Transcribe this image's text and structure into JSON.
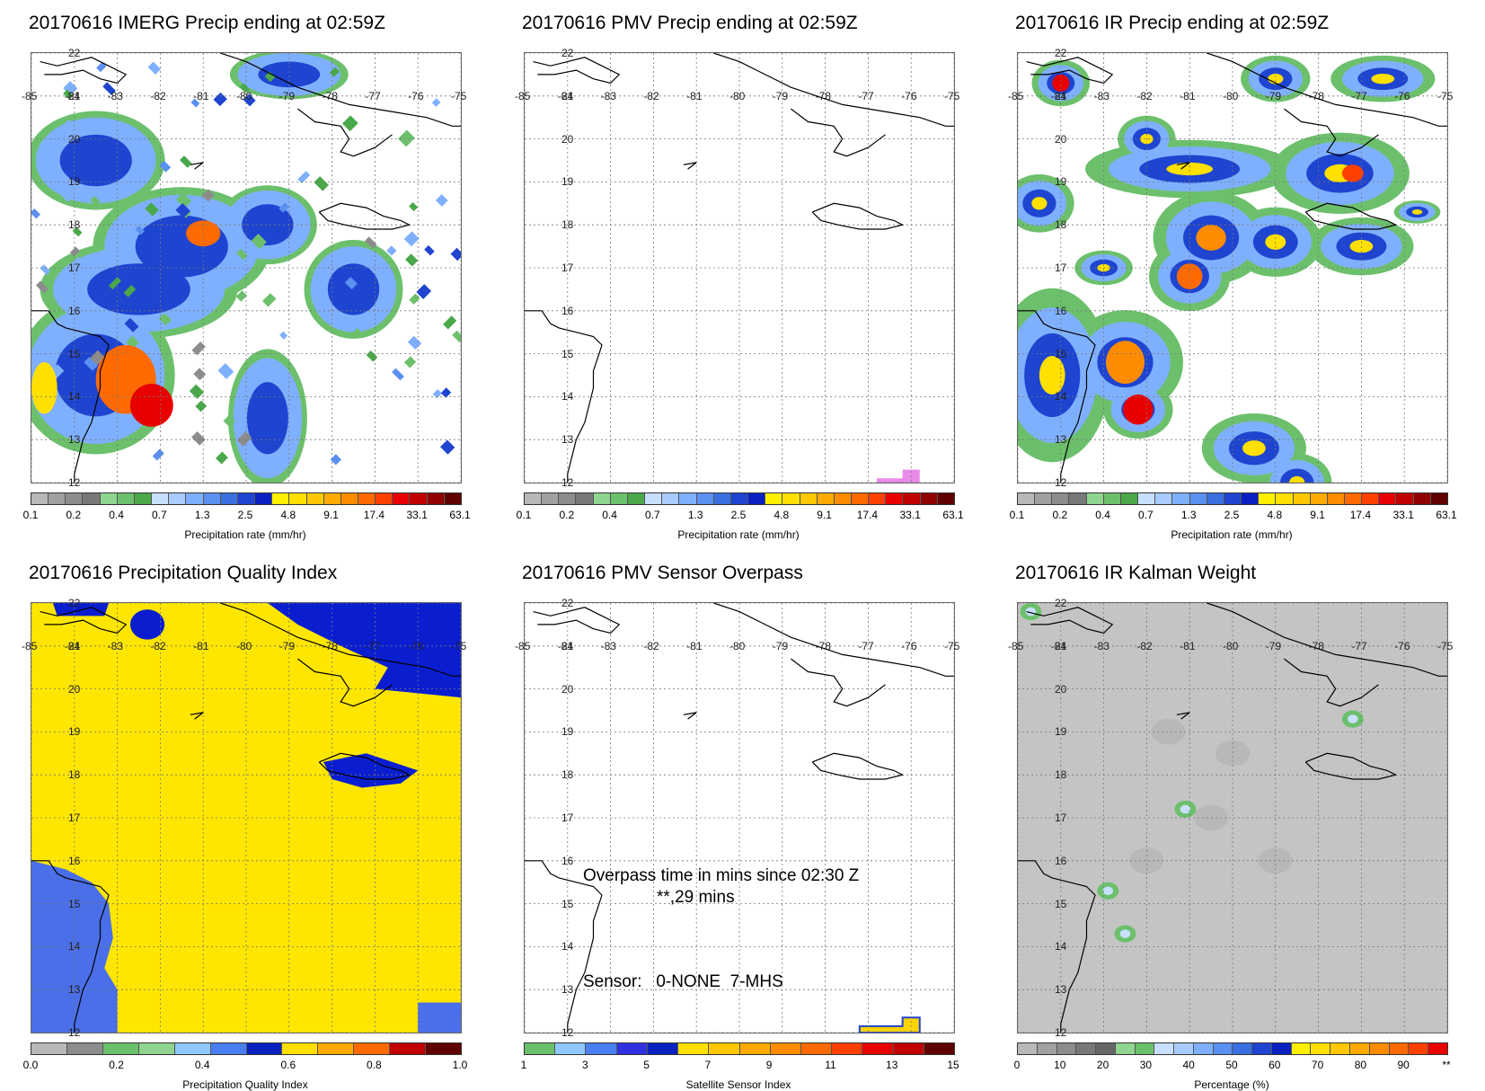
{
  "panels": [
    {
      "title": "20170616 IMERG Precip ending at 02:59Z",
      "cbar_title": "Precipitation rate (mm/hr)",
      "cbar_ticks": [
        "0.1",
        "0.2",
        "0.4",
        "0.7",
        "1.3",
        "2.5",
        "4.8",
        "9.1",
        "17.4",
        "33.1",
        "63.1"
      ],
      "scale": "precip"
    },
    {
      "title": "20170616 PMV Precip ending at 02:59Z",
      "cbar_title": "Precipitation rate (mm/hr)",
      "cbar_ticks": [
        "0.1",
        "0.2",
        "0.4",
        "0.7",
        "1.3",
        "2.5",
        "4.8",
        "9.1",
        "17.4",
        "33.1",
        "63.1"
      ],
      "scale": "precip"
    },
    {
      "title": "20170616 IR Precip ending at 02:59Z",
      "cbar_title": "Precipitation rate (mm/hr)",
      "cbar_ticks": [
        "0.1",
        "0.2",
        "0.4",
        "0.7",
        "1.3",
        "2.5",
        "4.8",
        "9.1",
        "17.4",
        "33.1",
        "63.1"
      ],
      "scale": "precip"
    },
    {
      "title": "20170616 Precipitation Quality Index",
      "cbar_title": "Precipitation Quality Index",
      "cbar_ticks": [
        "0.0",
        "0.2",
        "0.4",
        "0.6",
        "0.8",
        "1.0"
      ],
      "scale": "quality"
    },
    {
      "title": "20170616 PMV Sensor Overpass",
      "cbar_title": "Satellite Sensor Index",
      "cbar_ticks": [
        "1",
        "3",
        "5",
        "7",
        "9",
        "11",
        "13",
        "15"
      ],
      "scale": "sensor",
      "overpass_line1": "Overpass time in mins since 02:30 Z",
      "overpass_line2": "**,29 mins",
      "sensor_line": "Sensor:   0-NONE  7-MHS"
    },
    {
      "title": "20170616 IR Kalman Weight",
      "cbar_title": "Percentage (%)",
      "cbar_ticks": [
        "0",
        "10",
        "20",
        "30",
        "40",
        "50",
        "60",
        "70",
        "80",
        "90",
        "**"
      ],
      "scale": "percent"
    }
  ],
  "lat_labels": [
    "22",
    "21",
    "20",
    "19",
    "18",
    "17",
    "16",
    "15",
    "14",
    "13",
    "12"
  ],
  "lon_labels": [
    "-85",
    "-84",
    "-83",
    "-82",
    "-81",
    "-80",
    "-79",
    "-78",
    "-77",
    "-76",
    "-75"
  ],
  "colors": {
    "precip": [
      "#b8b8b8",
      "#a0a0a0",
      "#8c8c8c",
      "#787878",
      "#8fd48f",
      "#6cc06c",
      "#4aa84a",
      "#c8e0ff",
      "#a8ccff",
      "#7fb0ff",
      "#5a90f0",
      "#3a6fe0",
      "#1e44d0",
      "#0a20c0",
      "#fff000",
      "#ffe000",
      "#ffc800",
      "#ffaa00",
      "#ff8c00",
      "#ff6a00",
      "#ff4000",
      "#e80000",
      "#c00000",
      "#900000",
      "#600000"
    ],
    "quality": [
      "#b8b8b8",
      "#8c8c8c",
      "#6cc06c",
      "#8fd48f",
      "#8fc8ff",
      "#4a7ff0",
      "#0a20c0",
      "#ffe000",
      "#ffaa00",
      "#ff6a00",
      "#c00000",
      "#600000"
    ],
    "sensor": [
      "#6cc06c",
      "#8fc8ff",
      "#4a7ff0",
      "#3030e0",
      "#0a20c0",
      "#ffe000",
      "#ffc800",
      "#ffaa00",
      "#ff8c00",
      "#ff6a00",
      "#ff4000",
      "#e80000",
      "#c00000",
      "#600000"
    ],
    "percent": [
      "#b8b8b8",
      "#a0a0a0",
      "#8c8c8c",
      "#787878",
      "#666666",
      "#8fd48f",
      "#6cc06c",
      "#c8e0ff",
      "#a8ccff",
      "#7fb0ff",
      "#5a90f0",
      "#3a6fe0",
      "#1e44d0",
      "#0a20c0",
      "#fff000",
      "#ffe000",
      "#ffc800",
      "#ffaa00",
      "#ff8c00",
      "#ff6a00",
      "#ff4000",
      "#e80000"
    ],
    "quality_yellow": "#ffe600",
    "quality_blue": "#0a1ed0",
    "quality_lightblue": "#4a6fe8",
    "kalman_gray": "#c4c4c4"
  }
}
